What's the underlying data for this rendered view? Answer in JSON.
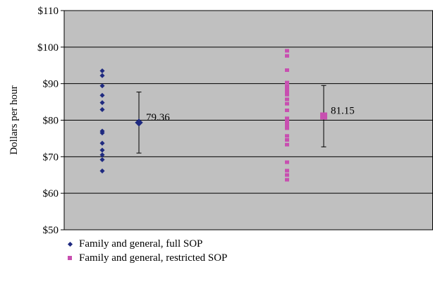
{
  "chart_data": {
    "type": "scatter",
    "title": "",
    "xlabel": "",
    "ylabel": "Dollars per hour",
    "ylim": [
      50,
      110
    ],
    "yticks": [
      50,
      60,
      70,
      80,
      90,
      100,
      110
    ],
    "ytick_labels": [
      "$50",
      "$60",
      "$70",
      "$80",
      "$90",
      "$100",
      "$110"
    ],
    "grid": true,
    "legend_position": "bottom-left",
    "series": [
      {
        "name": "Family and general, full SOP",
        "color": "#1f2a80",
        "marker": "diamond",
        "x": 1,
        "points": [
          93.5,
          92.2,
          89.4,
          86.8,
          84.8,
          82.9,
          77.0,
          76.5,
          73.7,
          71.8,
          70.5,
          69.2,
          66.1
        ],
        "mean": 79.36,
        "mean_label": "79.36",
        "error_low": 71.0,
        "error_high": 87.7
      },
      {
        "name": "Family and general, restricted SOP",
        "color": "#c84fb0",
        "marker": "square",
        "x": 2,
        "points": [
          99.0,
          97.6,
          93.7,
          90.3,
          89.3,
          88.5,
          87.9,
          87.0,
          85.7,
          84.5,
          82.7,
          80.5,
          79.6,
          78.7,
          77.8,
          75.7,
          74.6,
          73.3,
          68.5,
          66.2,
          65.0,
          63.7
        ],
        "mean": 81.15,
        "mean_label": "81.15",
        "error_low": 72.7,
        "error_high": 89.5
      }
    ]
  }
}
